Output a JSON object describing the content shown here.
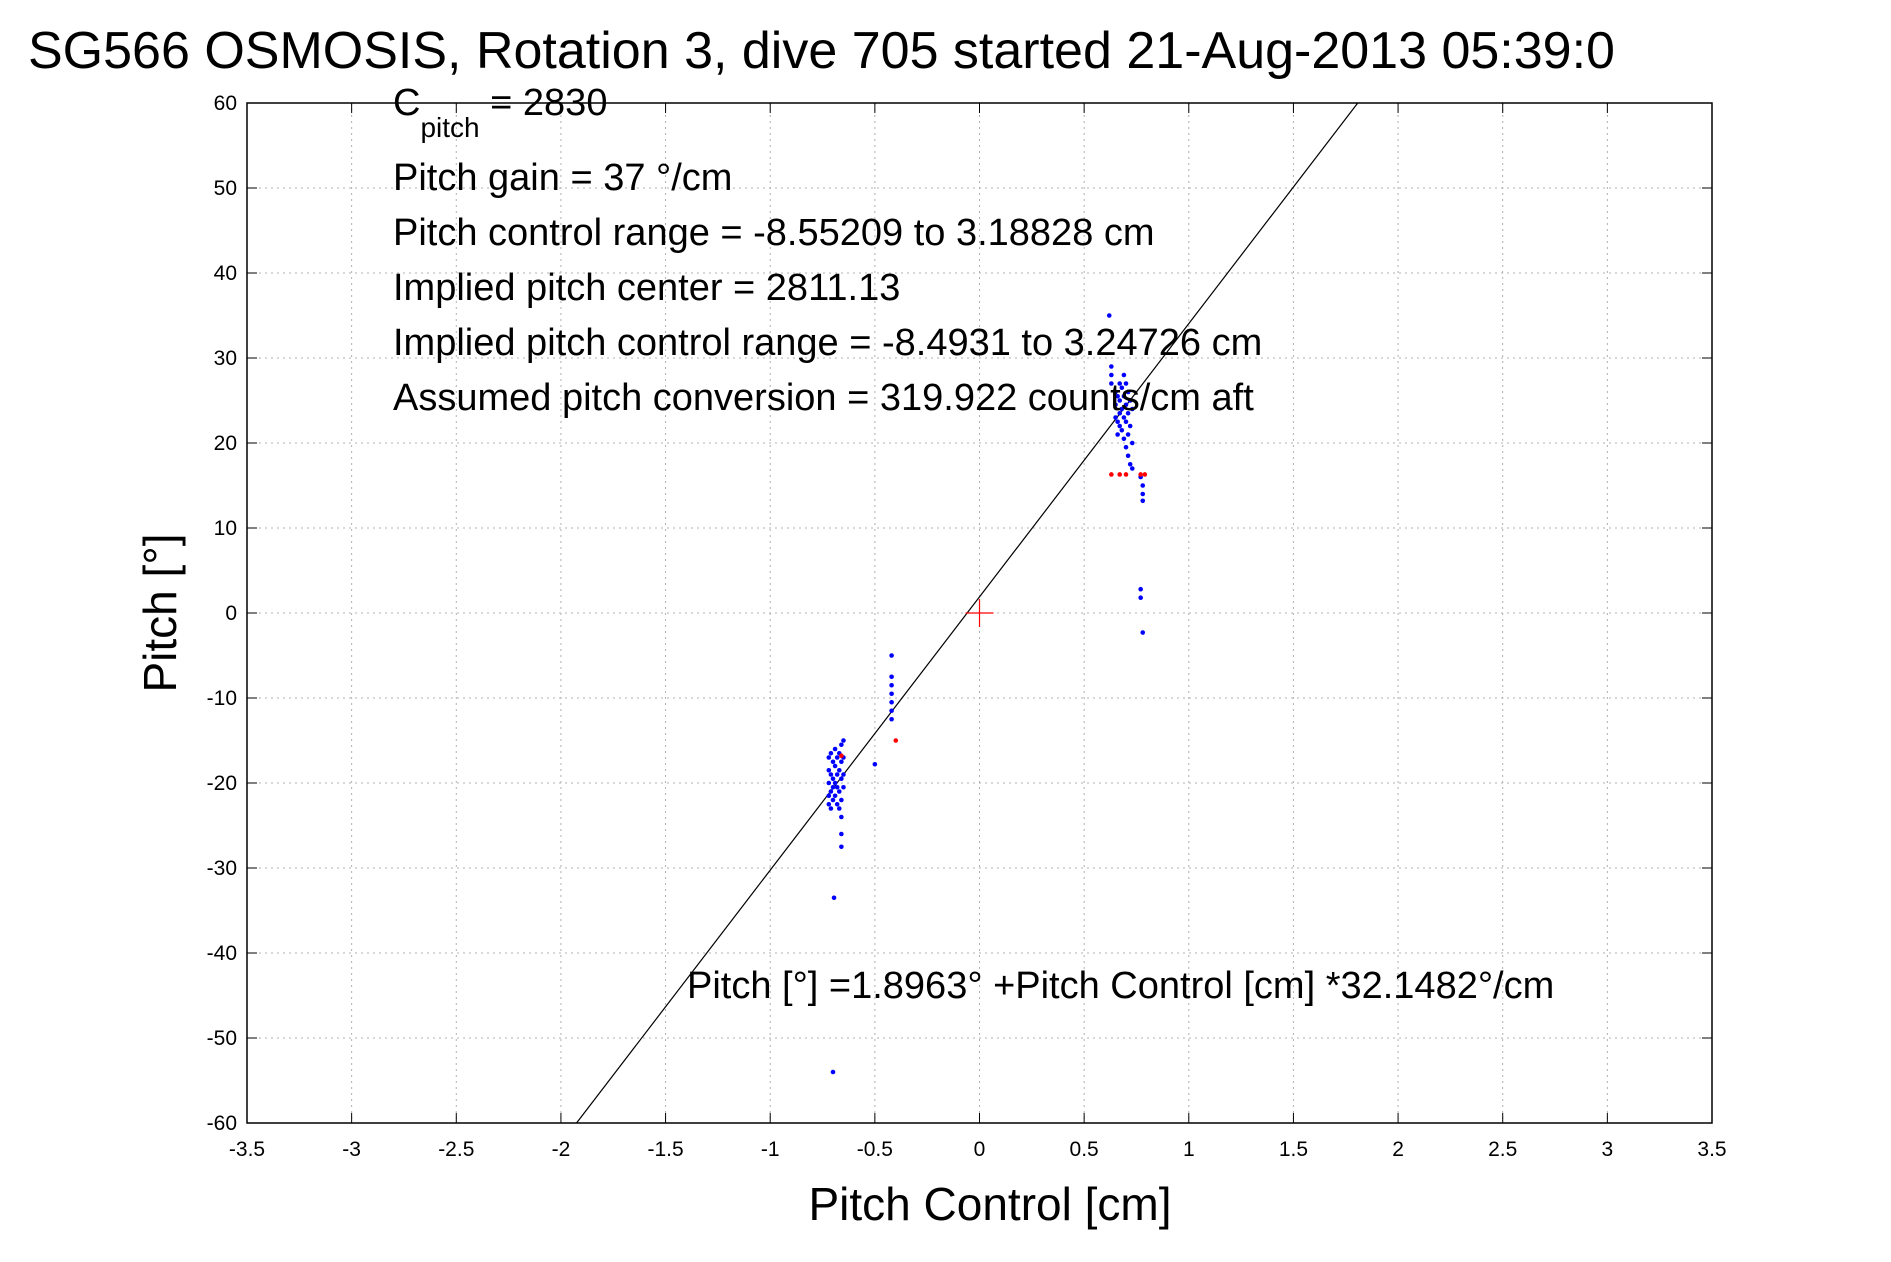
{
  "chart_data": {
    "type": "scatter",
    "title": "SG566 OSMOSIS, Rotation 3, dive 705 started 21-Aug-2013 05:39:0",
    "xlabel": "Pitch Control [cm]",
    "ylabel": "Pitch [°]",
    "xlim": [
      -3.5,
      3.5
    ],
    "ylim": [
      -60,
      60
    ],
    "xticks": [
      -3.5,
      -3,
      -2.5,
      -2,
      -1.5,
      -1,
      -0.5,
      0,
      0.5,
      1,
      1.5,
      2,
      2.5,
      3,
      3.5
    ],
    "yticks": [
      60,
      50,
      40,
      30,
      20,
      10,
      0,
      -10,
      -20,
      -30,
      -40,
      -50,
      -60
    ],
    "xtick_labels": [
      "-3.5",
      "-3",
      "-2.5",
      "-2",
      "-1.5",
      "-1",
      "-0.5",
      "0",
      "0.5",
      "1",
      "1.5",
      "2",
      "2.5",
      "3",
      "3.5"
    ],
    "ytick_labels": [
      "60",
      "50",
      "40",
      "30",
      "20",
      "10",
      "0",
      "-10",
      "-20",
      "-30",
      "-40",
      "-50",
      "-60"
    ],
    "grid": true,
    "annotations": {
      "c_pitch_main": "C",
      "c_pitch_sub": "pitch",
      "c_pitch_value": " = 2830",
      "pitch_gain": "Pitch gain = 37 °/cm",
      "control_range": "Pitch control range = -8.55209 to 3.18828 cm",
      "implied_center": "Implied pitch center = 2811.13",
      "implied_range": "Implied pitch control range = -8.4931 to 3.24726 cm",
      "conversion": "Assumed pitch conversion = 319.922 counts/cm aft",
      "fit_equation": "Pitch [°] =1.8963° +Pitch Control [cm] *32.1482°/cm"
    },
    "fit_line": {
      "intercept": 1.8963,
      "slope": 32.1482,
      "color": "#000000"
    },
    "center_marker": {
      "x": 0,
      "y": 0,
      "color": "#ff0000"
    },
    "series": [
      {
        "color": "#0000ff",
        "points": [
          [
            -0.72,
            -17
          ],
          [
            -0.72,
            -18.5
          ],
          [
            -0.72,
            -20
          ],
          [
            -0.72,
            -21.5
          ],
          [
            -0.72,
            -22.5
          ],
          [
            -0.71,
            -16.5
          ],
          [
            -0.71,
            -19
          ],
          [
            -0.71,
            -21
          ],
          [
            -0.71,
            -23
          ],
          [
            -0.7,
            -17.5
          ],
          [
            -0.7,
            -19.5
          ],
          [
            -0.7,
            -20.5
          ],
          [
            -0.7,
            -22
          ],
          [
            -0.69,
            -16
          ],
          [
            -0.69,
            -18
          ],
          [
            -0.69,
            -20
          ],
          [
            -0.69,
            -21.5
          ],
          [
            -0.68,
            -17
          ],
          [
            -0.68,
            -19
          ],
          [
            -0.68,
            -20.5
          ],
          [
            -0.68,
            -22.5
          ],
          [
            -0.67,
            -16.5
          ],
          [
            -0.67,
            -18.5
          ],
          [
            -0.67,
            -21
          ],
          [
            -0.67,
            -23
          ],
          [
            -0.66,
            -15.5
          ],
          [
            -0.66,
            -17.5
          ],
          [
            -0.66,
            -19.5
          ],
          [
            -0.66,
            -22
          ],
          [
            -0.66,
            -24
          ],
          [
            -0.66,
            -26
          ],
          [
            -0.66,
            -27.5
          ],
          [
            -0.65,
            -15
          ],
          [
            -0.65,
            -17
          ],
          [
            -0.65,
            -19
          ],
          [
            -0.65,
            -20.5
          ],
          [
            -0.695,
            -33.5
          ],
          [
            -0.7,
            -54
          ],
          [
            -0.5,
            -17.8
          ],
          [
            -0.42,
            -5
          ],
          [
            -0.42,
            -7.5
          ],
          [
            -0.42,
            -8.5
          ],
          [
            -0.42,
            -9.5
          ],
          [
            -0.42,
            -10.5
          ],
          [
            -0.42,
            -11.5
          ],
          [
            -0.42,
            -12.5
          ],
          [
            0.62,
            35
          ],
          [
            0.63,
            29
          ],
          [
            0.63,
            28
          ],
          [
            0.63,
            27
          ],
          [
            0.65,
            26
          ],
          [
            0.65,
            24.5
          ],
          [
            0.65,
            23
          ],
          [
            0.66,
            25.5
          ],
          [
            0.66,
            22.5
          ],
          [
            0.66,
            21
          ],
          [
            0.67,
            27
          ],
          [
            0.67,
            25
          ],
          [
            0.67,
            23.5
          ],
          [
            0.67,
            22
          ],
          [
            0.68,
            26.5
          ],
          [
            0.68,
            24
          ],
          [
            0.68,
            21.5
          ],
          [
            0.69,
            28
          ],
          [
            0.69,
            25.5
          ],
          [
            0.69,
            23
          ],
          [
            0.69,
            20.5
          ],
          [
            0.7,
            27
          ],
          [
            0.7,
            24.5
          ],
          [
            0.7,
            22.5
          ],
          [
            0.7,
            19.5
          ],
          [
            0.71,
            26
          ],
          [
            0.71,
            23.5
          ],
          [
            0.71,
            21
          ],
          [
            0.71,
            18.5
          ],
          [
            0.72,
            25
          ],
          [
            0.72,
            22
          ],
          [
            0.72,
            17.5
          ],
          [
            0.73,
            24
          ],
          [
            0.73,
            20
          ],
          [
            0.73,
            17
          ],
          [
            0.77,
            16
          ],
          [
            0.78,
            15
          ],
          [
            0.78,
            14
          ],
          [
            0.78,
            13.2
          ],
          [
            0.77,
            2.8
          ],
          [
            0.77,
            1.8
          ],
          [
            0.78,
            -2.3
          ]
        ]
      },
      {
        "color": "#ff0000",
        "points": [
          [
            -0.66,
            -16.8
          ],
          [
            -0.4,
            -15
          ],
          [
            0.63,
            16.3
          ],
          [
            0.67,
            16.3
          ],
          [
            0.7,
            16.3
          ],
          [
            0.77,
            16.3
          ],
          [
            0.79,
            16.3
          ]
        ]
      }
    ]
  }
}
